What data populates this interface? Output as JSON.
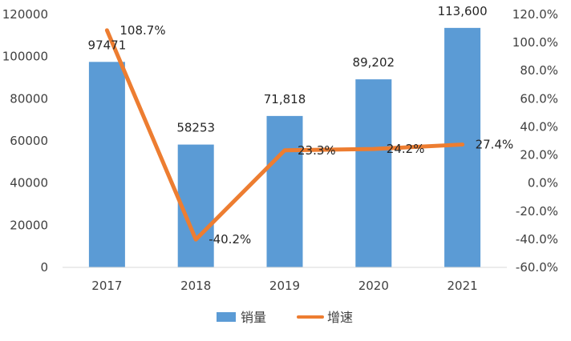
{
  "chart_data": {
    "type": "bar+line",
    "categories": [
      "2017",
      "2018",
      "2019",
      "2020",
      "2021"
    ],
    "series": [
      {
        "name": "销量",
        "type": "bar",
        "axis": "left",
        "values": [
          97471,
          58253,
          71818,
          89202,
          113600
        ],
        "labels": [
          "97471",
          "58253",
          "71,818",
          "89,202",
          "113,600"
        ],
        "color": "#5B9BD5"
      },
      {
        "name": "增速",
        "type": "line",
        "axis": "right",
        "values": [
          108.7,
          -40.2,
          23.3,
          24.2,
          27.4
        ],
        "labels": [
          "108.7%",
          "-40.2%",
          "23.3%",
          "24.2%",
          "27.4%"
        ],
        "color": "#ED7D31"
      }
    ],
    "y_left": {
      "min": 0,
      "max": 120000,
      "ticks": [
        0,
        20000,
        40000,
        60000,
        80000,
        100000,
        120000
      ],
      "tick_labels": [
        "0",
        "20000",
        "40000",
        "60000",
        "80000",
        "100000",
        "120000"
      ]
    },
    "y_right": {
      "min": -60,
      "max": 120,
      "ticks": [
        -60,
        -40,
        -20,
        0,
        20,
        40,
        60,
        80,
        100,
        120
      ],
      "tick_labels": [
        "-60.0%",
        "-40.0%",
        "-20.0%",
        "0.0%",
        "20.0%",
        "40.0%",
        "60.0%",
        "80.0%",
        "100.0%",
        "120.0%"
      ]
    },
    "title": "",
    "xlabel": "",
    "ylabel": "",
    "grid": false,
    "legend": "bottom-center"
  }
}
